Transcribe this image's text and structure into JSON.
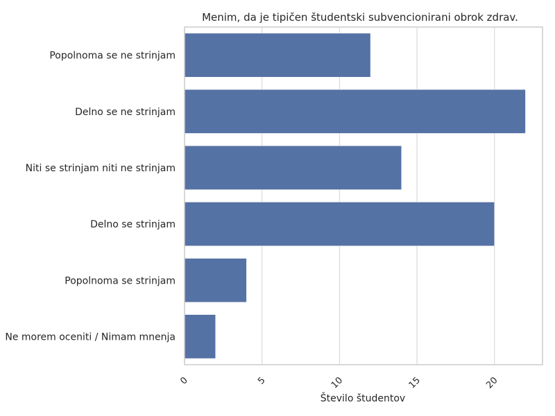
{
  "chart_data": {
    "type": "bar",
    "orientation": "horizontal",
    "title": "Menim, da je tipičen študentski subvencionirani obrok zdrav.",
    "xlabel": "Število študentov",
    "ylabel": "",
    "categories": [
      "Popolnoma se ne strinjam",
      "Delno se ne strinjam",
      "Niti se strinjam niti ne strinjam",
      "Delno se strinjam",
      "Popolnoma se strinjam",
      "Ne morem oceniti / Nimam mnenja"
    ],
    "values": [
      12,
      22,
      14,
      20,
      4,
      2
    ],
    "xlim": [
      0,
      23.1
    ],
    "xticks": [
      0,
      5,
      10,
      15,
      20
    ],
    "grid": "vertical",
    "bar_color": "#5572a4",
    "grid_color": "#d9d9d9",
    "axes_color": "#cccccc"
  }
}
